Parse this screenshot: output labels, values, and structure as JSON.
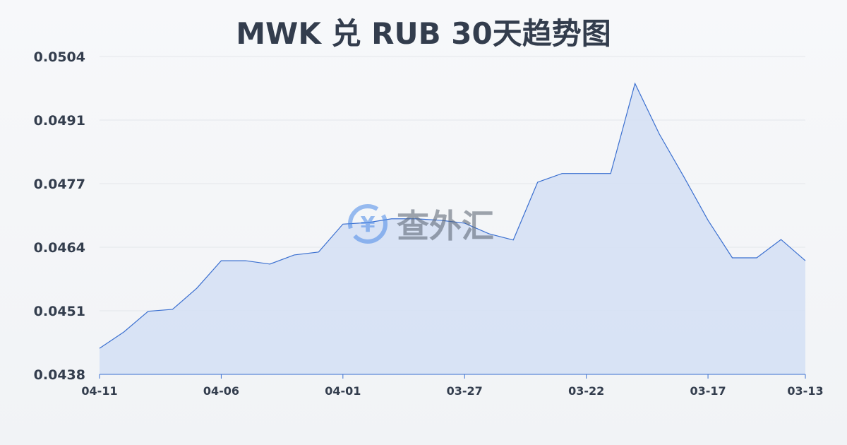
{
  "chart_data": {
    "type": "area",
    "title": "MWK 兑 RUB 30天趋势图",
    "xlabel": "",
    "ylabel": "",
    "x": [
      "04-11",
      "04-10",
      "04-09",
      "04-08",
      "04-07",
      "04-06",
      "04-05",
      "04-04",
      "04-03",
      "04-02",
      "04-01",
      "03-31",
      "03-30",
      "03-29",
      "03-28",
      "03-27",
      "03-26",
      "03-25",
      "03-24",
      "03-23",
      "03-22",
      "03-21",
      "03-20",
      "03-19",
      "03-18",
      "03-17",
      "03-16",
      "03-15",
      "03-14",
      "03-13"
    ],
    "values": [
      0.04434,
      0.04468,
      0.04511,
      0.04515,
      0.04559,
      0.04616,
      0.04616,
      0.04609,
      0.04628,
      0.04634,
      0.04692,
      0.04695,
      0.04703,
      0.04703,
      0.047,
      0.04694,
      0.04672,
      0.04659,
      0.04779,
      0.04797,
      0.04797,
      0.04797,
      0.04984,
      0.04879,
      0.04791,
      0.047,
      0.04622,
      0.04622,
      0.0466,
      0.04616
    ],
    "xticks": [
      "04-11",
      "04-06",
      "04-01",
      "03-27",
      "03-22",
      "03-17",
      "03-13"
    ],
    "yticks": [
      "0.0504",
      "0.0491",
      "0.0477",
      "0.0464",
      "0.0451",
      "0.0438"
    ],
    "ylim": [
      0.0438,
      0.0504
    ],
    "grid": true,
    "colors": {
      "line": "#3a6fd0",
      "fill": "#d3dff5"
    }
  },
  "watermark": {
    "text": "查外汇",
    "icon": "currency-exchange-icon"
  }
}
